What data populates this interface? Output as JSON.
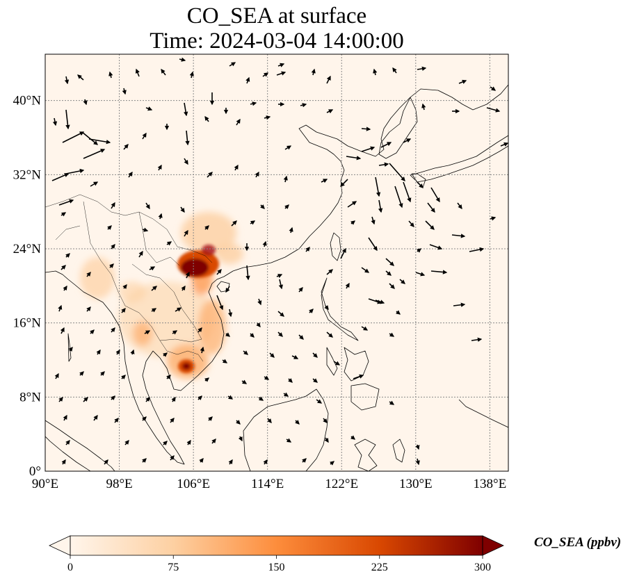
{
  "title": "CO_SEA at surface",
  "subtitle": "Time: 2024-03-04 14:00:00",
  "map": {
    "lon_range": [
      90,
      140
    ],
    "lat_range": [
      0,
      45
    ],
    "lon_ticks": [
      {
        "value": 90,
        "label": "90°E"
      },
      {
        "value": 98,
        "label": "98°E"
      },
      {
        "value": 106,
        "label": "106°E"
      },
      {
        "value": 114,
        "label": "114°E"
      },
      {
        "value": 122,
        "label": "122°E"
      },
      {
        "value": 130,
        "label": "130°E"
      },
      {
        "value": 138,
        "label": "138°E"
      }
    ],
    "lat_ticks": [
      {
        "value": 0,
        "label": "0°"
      },
      {
        "value": 8,
        "label": "8°N"
      },
      {
        "value": 16,
        "label": "16°N"
      },
      {
        "value": 24,
        "label": "24°N"
      },
      {
        "value": 32,
        "label": "32°N"
      },
      {
        "value": 40,
        "label": "40°N"
      }
    ],
    "gridlines": true
  },
  "colorbar": {
    "label": "CO_SEA (ppbv)",
    "min": 0,
    "max": 300,
    "ticks": [
      {
        "value": 0,
        "label": "0"
      },
      {
        "value": 75,
        "label": "75"
      },
      {
        "value": 150,
        "label": "150"
      },
      {
        "value": 225,
        "label": "225"
      },
      {
        "value": 300,
        "label": "300"
      }
    ],
    "extend": "both",
    "colors": [
      "#fff5eb",
      "#fdd0a2",
      "#fd8d3c",
      "#d94801",
      "#7f0000"
    ]
  }
}
